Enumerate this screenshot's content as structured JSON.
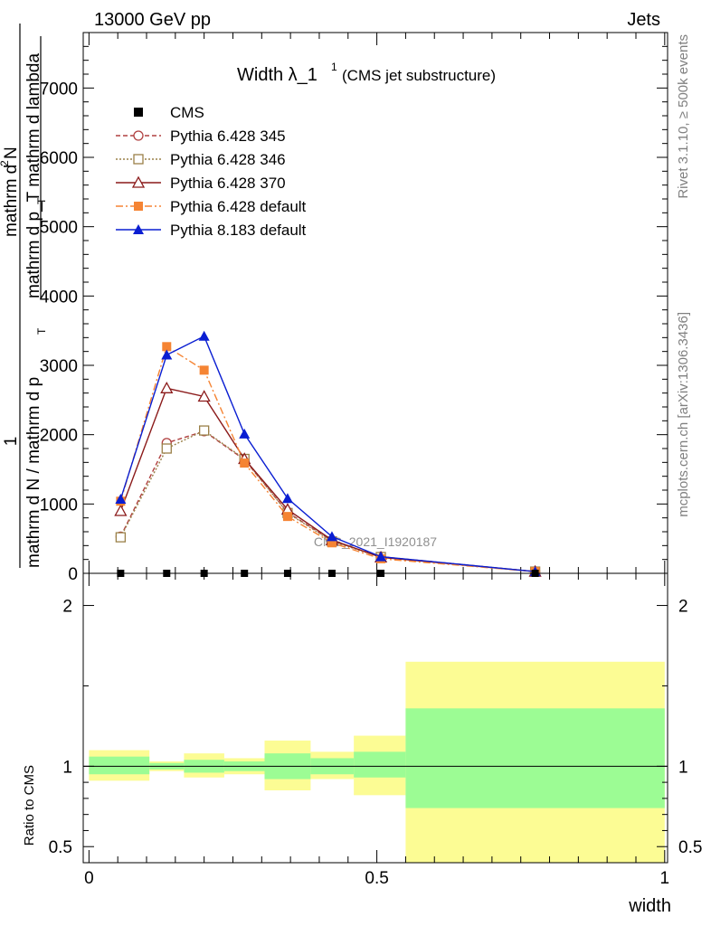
{
  "header": {
    "left": "13000 GeV pp",
    "right": "Jets",
    "side_top": "Rivet 3.1.10, ≥ 500k events",
    "side_bottom": "mcplots.cern.ch [arXiv:1306.3436]",
    "watermark": "CMS_2021_I1920187"
  },
  "chart_data": [
    {
      "type": "line",
      "title_main": "Width λ_1",
      "title_sup": "1",
      "title_sub": "(CMS jet substructure)",
      "ylabel_numerator": "mathrm d",
      "ylabel_numerator_sup": "2",
      "ylabel_numerator_tail": "N",
      "ylabel_denominator": "mathrm d p_T mathrm d lambda",
      "ylabel_denominator_sub": "T",
      "ylabel_prefix": "1",
      "ylabel_prefix_denominator": "mathrm d N / mathrm d p",
      "ylabel_prefix_sub": "T",
      "xlim": [
        -0.01,
        1.005
      ],
      "ylim": [
        0,
        7800
      ],
      "ytick_values": [
        0,
        1000,
        2000,
        3000,
        4000,
        5000,
        6000,
        7000
      ],
      "ytick_labels": [
        "0",
        "1000",
        "2000",
        "3000",
        "4000",
        "5000",
        "6000",
        "7000"
      ],
      "series": [
        {
          "name": "CMS",
          "color": "#000000",
          "marker": "square-filled",
          "dash": "none",
          "x": [
            0.055,
            0.135,
            0.2,
            0.27,
            0.345,
            0.422,
            0.507,
            0.775
          ],
          "y": [
            0,
            0,
            0,
            0,
            0,
            0,
            0,
            0
          ]
        },
        {
          "name": "Pythia 6.428 345",
          "color": "#b04040",
          "marker": "circle-open",
          "dash": "5,3",
          "x": [
            0.055,
            0.135,
            0.2,
            0.27,
            0.345,
            0.422,
            0.507,
            0.775
          ],
          "y": [
            530,
            1880,
            2050,
            1640,
            880,
            470,
            240,
            25
          ]
        },
        {
          "name": "Pythia 6.428 346",
          "color": "#9a8048",
          "marker": "square-open",
          "dash": "2,2",
          "x": [
            0.055,
            0.135,
            0.2,
            0.27,
            0.345,
            0.422,
            0.507,
            0.775
          ],
          "y": [
            520,
            1800,
            2060,
            1650,
            870,
            460,
            235,
            25
          ]
        },
        {
          "name": "Pythia 6.428 370",
          "color": "#8b1a1a",
          "marker": "triangle-open",
          "dash": "none",
          "x": [
            0.055,
            0.135,
            0.2,
            0.27,
            0.345,
            0.422,
            0.507,
            0.775
          ],
          "y": [
            900,
            2670,
            2550,
            1650,
            920,
            480,
            230,
            25
          ]
        },
        {
          "name": "Pythia 6.428 default",
          "color": "#f58433",
          "marker": "square-filled",
          "dash": "8,3,2,3",
          "x": [
            0.055,
            0.135,
            0.2,
            0.27,
            0.345,
            0.422,
            0.507,
            0.775
          ],
          "y": [
            1040,
            3270,
            2930,
            1590,
            820,
            440,
            210,
            25
          ]
        },
        {
          "name": "Pythia 8.183 default",
          "color": "#0a1ed2",
          "marker": "triangle-filled",
          "dash": "none",
          "x": [
            0.055,
            0.135,
            0.2,
            0.27,
            0.345,
            0.422,
            0.507,
            0.775
          ],
          "y": [
            1070,
            3150,
            3420,
            2010,
            1080,
            530,
            240,
            25
          ]
        }
      ]
    },
    {
      "type": "area",
      "ylabel": "Ratio to CMS",
      "xlabel": "width",
      "xlim": [
        -0.01,
        1.005
      ],
      "ylim": [
        0.4,
        2.2
      ],
      "ytick_values": [
        0.5,
        1,
        2
      ],
      "ytick_labels": [
        "0.5",
        "1",
        "2"
      ],
      "xtick_values": [
        0,
        0.5,
        1
      ],
      "xtick_labels": [
        "0",
        "0.5",
        "1"
      ],
      "reference_line": 1,
      "bands": [
        {
          "x0": 0.0,
          "x1": 0.105,
          "inner": [
            0.95,
            1.06
          ],
          "outer": [
            0.91,
            1.1
          ]
        },
        {
          "x0": 0.105,
          "x1": 0.165,
          "inner": [
            0.98,
            1.02
          ],
          "outer": [
            0.97,
            1.03
          ]
        },
        {
          "x0": 0.165,
          "x1": 0.235,
          "inner": [
            0.96,
            1.04
          ],
          "outer": [
            0.93,
            1.08
          ]
        },
        {
          "x0": 0.235,
          "x1": 0.305,
          "inner": [
            0.97,
            1.03
          ],
          "outer": [
            0.95,
            1.05
          ]
        },
        {
          "x0": 0.305,
          "x1": 0.385,
          "inner": [
            0.92,
            1.08
          ],
          "outer": [
            0.85,
            1.16
          ]
        },
        {
          "x0": 0.385,
          "x1": 0.46,
          "inner": [
            0.95,
            1.05
          ],
          "outer": [
            0.92,
            1.09
          ]
        },
        {
          "x0": 0.46,
          "x1": 0.55,
          "inner": [
            0.93,
            1.09
          ],
          "outer": [
            0.82,
            1.19
          ]
        },
        {
          "x0": 0.55,
          "x1": 1.0,
          "inner": [
            0.74,
            1.36
          ],
          "outer": [
            0.38,
            1.65
          ]
        }
      ],
      "band_colors": {
        "inner": "#9cfc94",
        "outer": "#fcfc94"
      }
    }
  ]
}
